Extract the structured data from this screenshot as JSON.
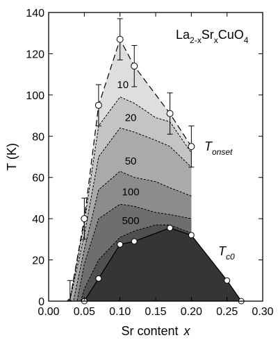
{
  "chart_data": {
    "type": "area",
    "title_main": "La",
    "title_sub1": "2-x",
    "title_mid": "Sr",
    "title_sub2": "x",
    "title_end": "CuO",
    "title_sub3": "4",
    "xlabel": "Sr content",
    "xlabel_var": "x",
    "ylabel": "T (K)",
    "xlim": [
      0.0,
      0.3
    ],
    "ylim": [
      0,
      140
    ],
    "x_ticks": [
      0.0,
      0.05,
      0.1,
      0.15,
      0.2,
      0.25,
      0.3
    ],
    "x_tick_labels": [
      "0.00",
      "0.05",
      "0.10",
      "0.15",
      "0.20",
      "0.25",
      "0.30"
    ],
    "y_ticks": [
      0,
      20,
      40,
      60,
      80,
      100,
      120,
      140
    ],
    "y_tick_labels": [
      "0",
      "20",
      "40",
      "60",
      "80",
      "100",
      "120",
      "140"
    ],
    "grid": false,
    "series": [
      {
        "name": "T",
        "name_sub": "onset",
        "points": [
          {
            "x": 0.03,
            "y": 1,
            "yerr": 9
          },
          {
            "x": 0.05,
            "y": 40,
            "yerr": 10
          },
          {
            "x": 0.07,
            "y": 95,
            "yerr": 10
          },
          {
            "x": 0.1,
            "y": 127,
            "yerr": 10
          },
          {
            "x": 0.12,
            "y": 114,
            "yerr": 10
          },
          {
            "x": 0.17,
            "y": 91,
            "yerr": 10
          },
          {
            "x": 0.2,
            "y": 75,
            "yerr": 10
          }
        ]
      },
      {
        "name": "T",
        "name_sub": "c0",
        "points": [
          {
            "x": 0.05,
            "y": 0
          },
          {
            "x": 0.07,
            "y": 11
          },
          {
            "x": 0.1,
            "y": 27.5
          },
          {
            "x": 0.12,
            "y": 29
          },
          {
            "x": 0.17,
            "y": 35.5
          },
          {
            "x": 0.2,
            "y": 32
          },
          {
            "x": 0.25,
            "y": 10
          },
          {
            "x": 0.27,
            "y": 0
          }
        ]
      }
    ],
    "contours": [
      {
        "label": "10",
        "points": [
          [
            0.03,
            1
          ],
          [
            0.05,
            38
          ],
          [
            0.07,
            85
          ],
          [
            0.1,
            99
          ],
          [
            0.12,
            96
          ],
          [
            0.15,
            89
          ],
          [
            0.17,
            87
          ],
          [
            0.2,
            72
          ]
        ],
        "label_at": [
          0.104,
          105
        ]
      },
      {
        "label": "20",
        "points": [
          [
            0.03,
            0.8
          ],
          [
            0.05,
            32
          ],
          [
            0.07,
            70
          ],
          [
            0.1,
            84
          ],
          [
            0.12,
            82
          ],
          [
            0.15,
            78
          ],
          [
            0.17,
            75
          ],
          [
            0.2,
            65
          ]
        ],
        "label_at": [
          0.115,
          89
        ]
      },
      {
        "label": "50",
        "points": [
          [
            0.035,
            0.5
          ],
          [
            0.05,
            25
          ],
          [
            0.07,
            54
          ],
          [
            0.1,
            63
          ],
          [
            0.12,
            60
          ],
          [
            0.15,
            58
          ],
          [
            0.17,
            55
          ],
          [
            0.2,
            51
          ]
        ],
        "label_at": [
          0.115,
          68
        ]
      },
      {
        "label": "100",
        "points": [
          [
            0.04,
            0.3
          ],
          [
            0.05,
            18
          ],
          [
            0.07,
            40
          ],
          [
            0.1,
            47
          ],
          [
            0.12,
            46
          ],
          [
            0.15,
            43
          ],
          [
            0.17,
            42
          ],
          [
            0.2,
            40
          ]
        ],
        "label_at": [
          0.115,
          53
        ]
      },
      {
        "label": "500",
        "points": [
          [
            0.045,
            0
          ],
          [
            0.05,
            6
          ],
          [
            0.07,
            20
          ],
          [
            0.1,
            31
          ],
          [
            0.12,
            34
          ],
          [
            0.15,
            37
          ],
          [
            0.17,
            37
          ],
          [
            0.2,
            33
          ]
        ],
        "label_at": [
          0.115,
          39
        ]
      }
    ],
    "colors": {
      "level0": "#dedede",
      "level1": "#c4c4c4",
      "level2": "#aaaaaa",
      "level3": "#8c8c8c",
      "level4": "#6e6e6e",
      "level5": "#505050",
      "superconducting": "#353535",
      "line": "#000000",
      "marker_fill": "#ffffff"
    }
  }
}
